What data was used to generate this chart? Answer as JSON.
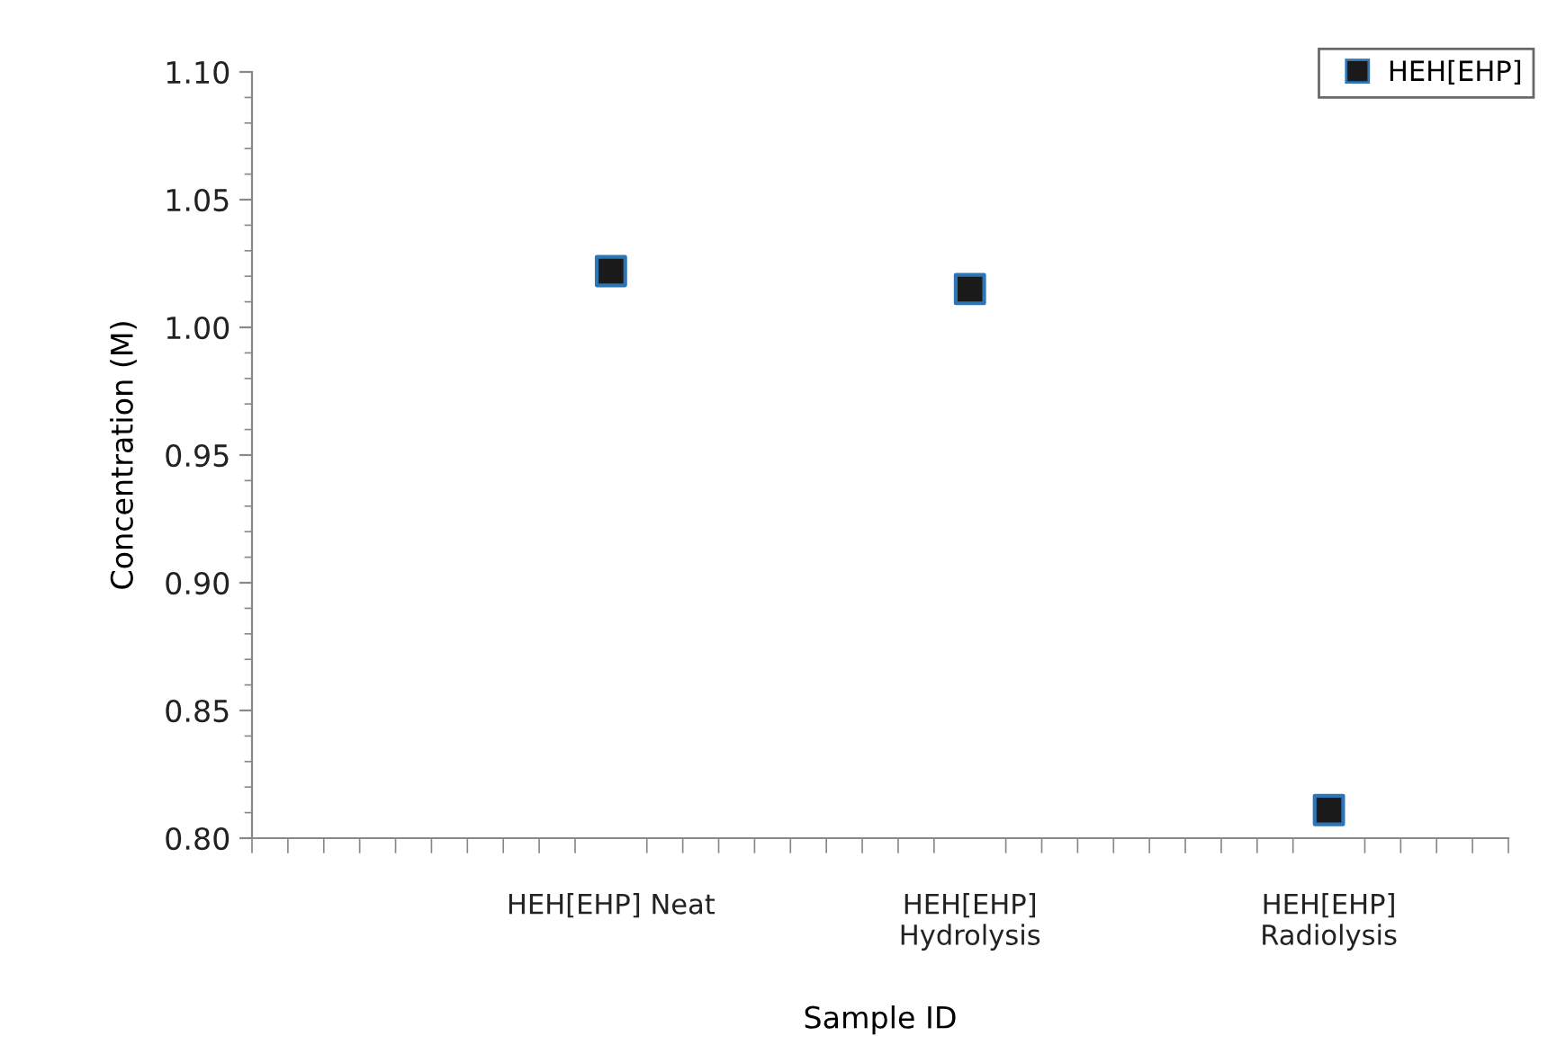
{
  "chart_data": {
    "type": "scatter",
    "xlabel": "Sample ID",
    "ylabel": "Concentration (M)",
    "categories": [
      "HEH[EHP] Neat",
      "HEH[EHP]\nHydrolysis",
      "HEH[EHP]\nRadiolysis"
    ],
    "series": [
      {
        "name": "HEH[EHP]",
        "color": "#1a1a1a",
        "values": [
          1.022,
          1.015,
          0.811
        ]
      }
    ],
    "ylim": [
      0.8,
      1.1
    ],
    "yticks": [
      {
        "value": 0.8,
        "label": "0.80"
      },
      {
        "value": 0.85,
        "label": "0.85"
      },
      {
        "value": 0.9,
        "label": "0.90"
      },
      {
        "value": 0.95,
        "label": "0.95"
      },
      {
        "value": 1.0,
        "label": "1.00"
      },
      {
        "value": 1.05,
        "label": "1.05"
      },
      {
        "value": 1.1,
        "label": "1.10"
      }
    ],
    "marker": "square",
    "grid": false,
    "legend": "top right"
  }
}
